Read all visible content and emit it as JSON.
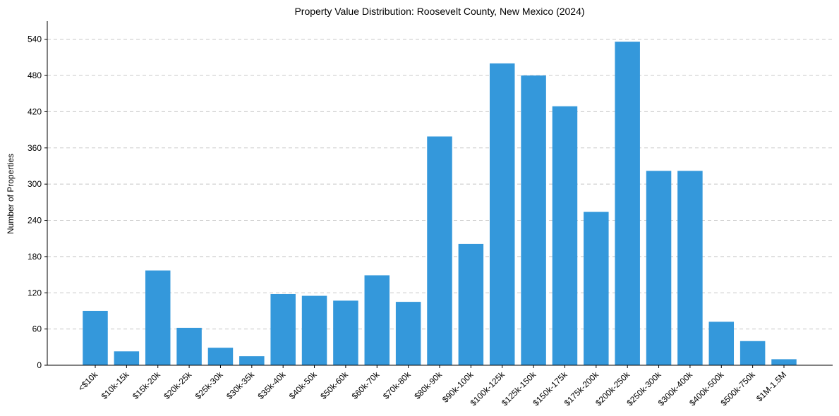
{
  "chart_data": {
    "type": "bar",
    "title": "Property Value Distribution: Roosevelt County, New Mexico (2024)",
    "xlabel": "",
    "ylabel": "Number of Properties",
    "ylim": [
      0,
      570
    ],
    "yticks": [
      0,
      60,
      120,
      180,
      240,
      300,
      360,
      420,
      480,
      540
    ],
    "grid": "horizontal dashed",
    "bar_color": "#3498db",
    "categories": [
      "<$10k",
      "$10k-15k",
      "$15k-20k",
      "$20k-25k",
      "$25k-30k",
      "$30k-35k",
      "$35k-40k",
      "$40k-50k",
      "$50k-60k",
      "$60k-70k",
      "$70k-80k",
      "$80k-90k",
      "$90k-100k",
      "$100k-125k",
      "$125k-150k",
      "$150k-175k",
      "$175k-200k",
      "$200k-250k",
      "$250k-300k",
      "$300k-400k",
      "$400k-500k",
      "$500k-750k",
      "$1M-1.5M"
    ],
    "values": [
      90,
      23,
      157,
      62,
      29,
      15,
      118,
      115,
      107,
      149,
      105,
      379,
      201,
      500,
      480,
      429,
      254,
      536,
      322,
      322,
      72,
      40,
      10
    ]
  }
}
